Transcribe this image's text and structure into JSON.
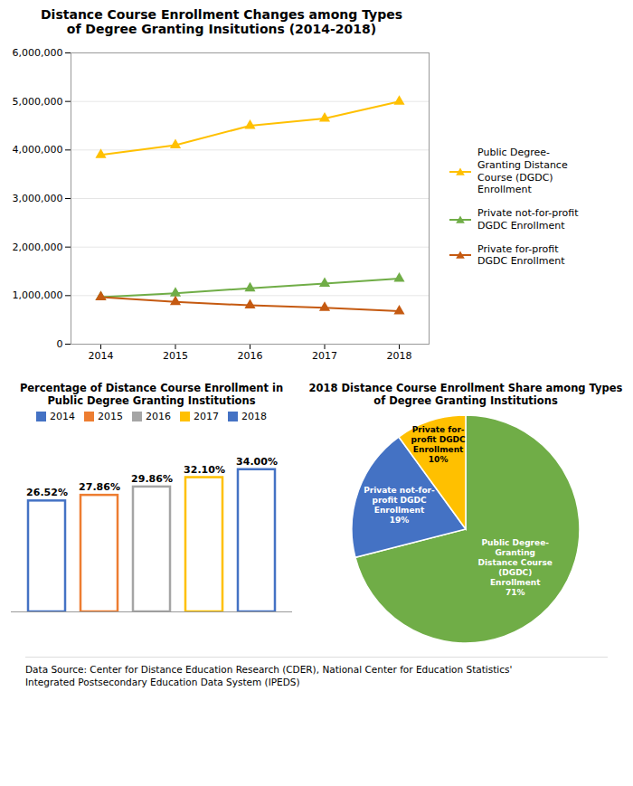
{
  "chart_data": [
    {
      "type": "line",
      "title": "Distance Course Enrollment Changes among Types\nof Degree Granting Insitutions (2014-2018)",
      "x": [
        2014,
        2015,
        2016,
        2017,
        2018
      ],
      "series": [
        {
          "name": "Public Degree-\nGranting Distance\nCourse (DGDC)\nEnrollment",
          "color": "#FFC000",
          "values": [
            3900000,
            4100000,
            4500000,
            4650000,
            5000000
          ]
        },
        {
          "name": "Private not-for-profit\nDGDC Enrollment",
          "color": "#70AD47",
          "values": [
            970000,
            1050000,
            1150000,
            1250000,
            1350000
          ]
        },
        {
          "name": "Private for-profit\nDGDC Enrollment",
          "color": "#C55A11",
          "values": [
            970000,
            870000,
            800000,
            750000,
            680000
          ]
        }
      ],
      "xlim": [
        2013.6,
        2018.4
      ],
      "xticks": [
        2014,
        2015,
        2016,
        2017,
        2018
      ],
      "ylim": [
        0,
        6000000
      ],
      "yticks": [
        0,
        {
          "value": 1000000,
          "label": "1,000,000"
        },
        {
          "value": 2000000,
          "label": "2,000,000"
        },
        {
          "value": 3000000,
          "label": "3,000,000"
        },
        {
          "value": 4000000,
          "label": "4,000,000"
        },
        {
          "value": 5000000,
          "label": "5,000,000"
        },
        {
          "value": 6000000,
          "label": "6,000,000"
        }
      ],
      "grid": "y",
      "legend": "right",
      "marker": "triangle"
    },
    {
      "type": "bar",
      "title": "Percentage of Distance Course Enrollment in\nPublic Degree Granting Institutions",
      "categories": [
        "2014",
        "2015",
        "2016",
        "2017",
        "2018"
      ],
      "values": [
        26.52,
        27.86,
        29.86,
        32.1,
        34
      ],
      "value_labels": [
        "26.52%",
        "27.86%",
        "29.86%",
        "32.10%",
        "34.00%"
      ],
      "colors": [
        "#4472C4",
        "#ED7D31",
        "#A5A5A5",
        "#FFC000",
        "#4472C4"
      ],
      "ylim": [
        0,
        40
      ],
      "data_labels": true,
      "tick_labels": false,
      "legend": "top"
    },
    {
      "type": "pie",
      "title": "2018 Distance Course Enrollment Share among Types\nof Degree Granting Institutions",
      "categories": [
        "Public Degree-\nGranting\nDistance Course\n(DGDC)\nEnrollment",
        "Private not-for-\nprofit DGDC\nEnrollment",
        "Private for-\nprofit DGDC\nEnrollment"
      ],
      "values": [
        71,
        19,
        10
      ],
      "value_labels": [
        "71%",
        "19%",
        "10%"
      ],
      "colors": [
        "#70AD47",
        "#4472C4",
        "#FFC000"
      ],
      "data_labels": true
    }
  ],
  "caption": "Data Source: Center for Distance Education Research (CDER), National Center for Education Statistics'\nIntegrated Postsecondary Education Data System (IPEDS)"
}
